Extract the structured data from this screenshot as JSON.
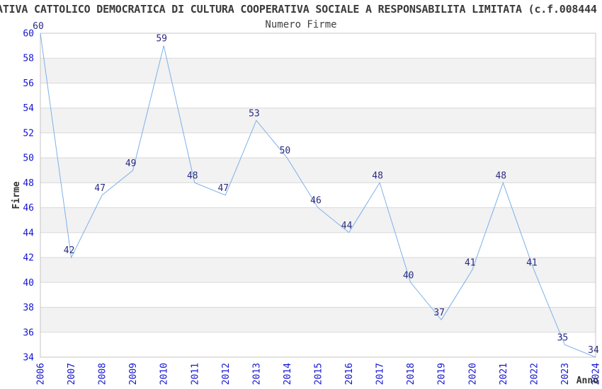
{
  "header": {
    "title": "ATIVA CATTOLICO DEMOCRATICA DI CULTURA COOPERATIVA SOCIALE A RESPONSABILITA LIMITATA (c.f.008444"
  },
  "chart_data": {
    "type": "line",
    "title": "Numero Firme",
    "xlabel": "Anno",
    "ylabel": "Firme",
    "x": [
      2006,
      2007,
      2008,
      2009,
      2010,
      2011,
      2012,
      2013,
      2014,
      2015,
      2016,
      2017,
      2018,
      2019,
      2020,
      2021,
      2022,
      2023,
      2024
    ],
    "values": [
      60,
      42,
      47,
      49,
      59,
      48,
      47,
      53,
      50,
      46,
      44,
      48,
      40,
      37,
      41,
      48,
      41,
      35,
      34
    ],
    "ylim": [
      34,
      60
    ],
    "ytick_step": 2,
    "grid": true,
    "legend_position": "none",
    "colors": {
      "line": "#7db1e8",
      "tick_label": "#1414d2",
      "value_label": "#2b2b80",
      "band": "#f2f2f2",
      "gridline": "#d9d9d9",
      "border": "#c4c4c4",
      "title_text": "#3a3a3a"
    }
  }
}
